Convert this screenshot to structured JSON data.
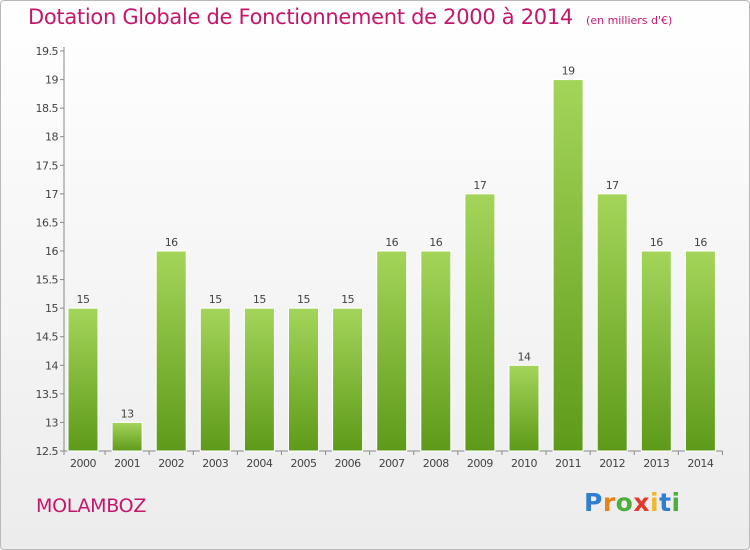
{
  "title": "Dotation Globale de Fonctionnement de 2000 à 2014",
  "subtitle": "(en milliers d'€)",
  "commune": "MOLAMBOZ",
  "logo": {
    "text": "Proxiti",
    "letters": [
      "P",
      "r",
      "o",
      "x",
      "i",
      "t",
      "i"
    ]
  },
  "colors": {
    "title": "#c4176c",
    "bar_top": "#a4d55a",
    "bar_bottom": "#5e9a1a"
  },
  "chart_data": {
    "type": "bar",
    "categories": [
      "2000",
      "2001",
      "2002",
      "2003",
      "2004",
      "2005",
      "2006",
      "2007",
      "2008",
      "2009",
      "2010",
      "2011",
      "2012",
      "2013",
      "2014"
    ],
    "values": [
      15,
      13,
      16,
      15,
      15,
      15,
      15,
      16,
      16,
      17,
      14,
      19,
      17,
      16,
      16
    ],
    "data_labels": [
      "15",
      "13",
      "16",
      "15",
      "15",
      "15",
      "15",
      "16",
      "16",
      "17",
      "14",
      "19",
      "17",
      "16",
      "16"
    ],
    "yticks": [
      12.5,
      13,
      13.5,
      14,
      14.5,
      15,
      15.5,
      16,
      16.5,
      17,
      17.5,
      18,
      18.5,
      19,
      19.5
    ],
    "ytick_labels": [
      "12.5",
      "13",
      "13.5",
      "14",
      "14.5",
      "15",
      "15.5",
      "16",
      "16.5",
      "17",
      "17.5",
      "18",
      "18.5",
      "19",
      "19.5"
    ],
    "ylim": [
      12.5,
      19.5
    ],
    "grid": false,
    "legend": "none"
  }
}
